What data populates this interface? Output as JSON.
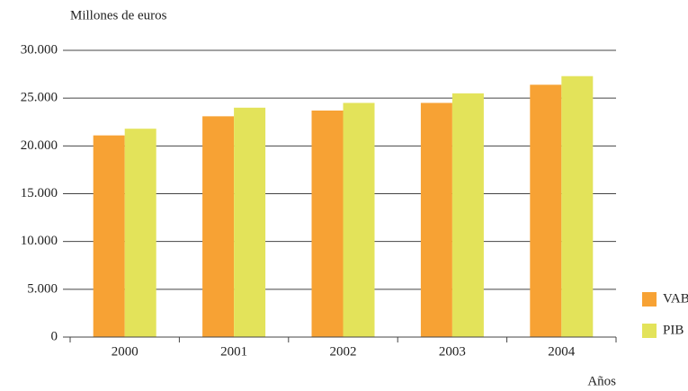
{
  "chart_data": {
    "type": "bar",
    "title": "Millones de euros",
    "x_label": "Años",
    "categories": [
      "2000",
      "2001",
      "2002",
      "2003",
      "2004"
    ],
    "series": [
      {
        "name": "VAB",
        "color": "#f7a234",
        "values": [
          21100,
          23100,
          23700,
          24500,
          26400
        ]
      },
      {
        "name": "PIB",
        "color": "#e3e35a",
        "values": [
          21800,
          24000,
          24500,
          25500,
          27300
        ]
      }
    ],
    "ylim": [
      0,
      30000
    ],
    "yticks": [
      0,
      {
        "value": 5000,
        "label": "5.000"
      },
      {
        "value": 10000,
        "label": "10.000"
      },
      {
        "value": 15000,
        "label": "15.000"
      },
      {
        "value": 20000,
        "label": "20.000"
      },
      {
        "value": 25000,
        "label": "25.000"
      },
      {
        "value": 30000,
        "label": "30.000"
      }
    ],
    "grid": true,
    "legend": "right"
  }
}
